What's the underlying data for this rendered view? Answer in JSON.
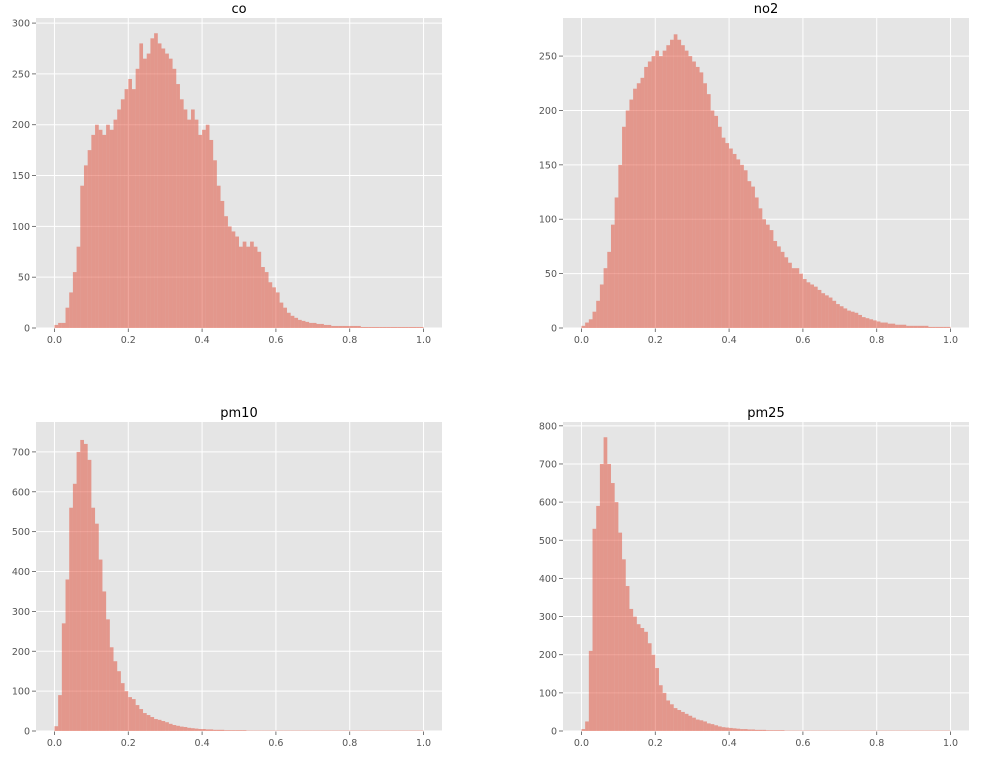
{
  "figure": {
    "background": "#ffffff",
    "axes_face": "#e5e5e5",
    "grid_color": "#ffffff",
    "bar_color": "#e24a33",
    "bar_opacity": 0.5
  },
  "chart_data": [
    {
      "type": "bar",
      "title": "co",
      "xlim": [
        -0.05,
        1.05
      ],
      "ylim": [
        0,
        305
      ],
      "xticks": [
        "0.0",
        "0.2",
        "0.4",
        "0.6",
        "0.8",
        "1.0"
      ],
      "yticks": [
        "0",
        "50",
        "100",
        "150",
        "200",
        "250",
        "300"
      ],
      "bin_width": 0.01,
      "bin_start": 0.0,
      "values": [
        3,
        5,
        5,
        20,
        35,
        55,
        80,
        140,
        160,
        175,
        190,
        200,
        195,
        190,
        200,
        195,
        205,
        215,
        225,
        235,
        245,
        235,
        255,
        280,
        265,
        270,
        285,
        290,
        280,
        275,
        270,
        265,
        255,
        240,
        225,
        215,
        205,
        215,
        205,
        190,
        195,
        200,
        185,
        165,
        140,
        125,
        110,
        100,
        95,
        90,
        80,
        85,
        80,
        85,
        80,
        75,
        60,
        55,
        45,
        40,
        35,
        25,
        20,
        15,
        12,
        10,
        8,
        7,
        6,
        5,
        5,
        4,
        4,
        3,
        3,
        2,
        2,
        2,
        2,
        2,
        2,
        2,
        2,
        1,
        1,
        1,
        1,
        1,
        1,
        1,
        1,
        1,
        1,
        1,
        1,
        1,
        1,
        1,
        1,
        1
      ]
    },
    {
      "type": "bar",
      "title": "no2",
      "xlim": [
        -0.05,
        1.05
      ],
      "ylim": [
        0,
        285
      ],
      "xticks": [
        "0.0",
        "0.2",
        "0.4",
        "0.6",
        "0.8",
        "1.0"
      ],
      "yticks": [
        "0",
        "50",
        "100",
        "150",
        "200",
        "250"
      ],
      "bin_width": 0.01,
      "bin_start": 0.0,
      "values": [
        2,
        5,
        8,
        15,
        25,
        40,
        55,
        70,
        95,
        120,
        150,
        185,
        200,
        210,
        220,
        225,
        230,
        240,
        245,
        250,
        255,
        250,
        255,
        260,
        265,
        270,
        265,
        260,
        255,
        250,
        245,
        240,
        235,
        225,
        215,
        200,
        195,
        185,
        175,
        170,
        165,
        160,
        155,
        150,
        145,
        135,
        130,
        120,
        110,
        100,
        95,
        90,
        80,
        75,
        70,
        65,
        60,
        55,
        55,
        50,
        45,
        42,
        40,
        38,
        35,
        32,
        30,
        28,
        25,
        22,
        20,
        18,
        16,
        15,
        14,
        12,
        10,
        9,
        8,
        7,
        6,
        5,
        5,
        4,
        4,
        3,
        3,
        3,
        2,
        2,
        2,
        2,
        2,
        2,
        1,
        1,
        1,
        1,
        1,
        1
      ]
    },
    {
      "type": "bar",
      "title": "pm10",
      "xlim": [
        -0.05,
        1.05
      ],
      "ylim": [
        0,
        775
      ],
      "xticks": [
        "0.0",
        "0.2",
        "0.4",
        "0.6",
        "0.8",
        "1.0"
      ],
      "yticks": [
        "0",
        "100",
        "200",
        "300",
        "400",
        "500",
        "600",
        "700"
      ],
      "bin_width": 0.01,
      "bin_start": 0.0,
      "values": [
        12,
        90,
        270,
        380,
        560,
        620,
        700,
        730,
        720,
        680,
        560,
        520,
        430,
        350,
        280,
        210,
        175,
        150,
        120,
        100,
        85,
        80,
        65,
        55,
        45,
        40,
        35,
        30,
        28,
        25,
        22,
        18,
        15,
        13,
        11,
        10,
        8,
        7,
        6,
        5,
        5,
        4,
        4,
        3,
        3,
        3,
        2,
        2,
        2,
        2,
        2,
        2,
        1,
        1,
        1,
        1,
        1,
        1,
        1,
        1,
        1,
        1,
        1,
        1,
        1,
        1,
        1,
        1,
        1,
        1,
        1,
        1,
        1,
        1,
        1,
        1,
        1,
        1,
        1,
        1,
        1,
        1,
        1,
        1,
        1,
        1,
        1,
        1,
        1,
        1,
        1,
        1,
        1,
        1,
        1,
        1,
        1,
        1,
        1,
        1
      ]
    },
    {
      "type": "bar",
      "title": "pm25",
      "xlim": [
        -0.05,
        1.05
      ],
      "ylim": [
        0,
        810
      ],
      "xticks": [
        "0.0",
        "0.2",
        "0.4",
        "0.6",
        "0.8",
        "1.0"
      ],
      "yticks": [
        "0",
        "100",
        "200",
        "300",
        "400",
        "500",
        "600",
        "700",
        "800"
      ],
      "bin_width": 0.01,
      "bin_start": 0.0,
      "values": [
        5,
        25,
        210,
        530,
        590,
        700,
        770,
        700,
        650,
        600,
        520,
        450,
        380,
        320,
        300,
        280,
        270,
        260,
        230,
        200,
        165,
        120,
        100,
        80,
        70,
        60,
        55,
        50,
        45,
        40,
        35,
        30,
        28,
        25,
        20,
        18,
        15,
        12,
        10,
        9,
        8,
        7,
        6,
        5,
        5,
        4,
        4,
        3,
        3,
        3,
        2,
        2,
        2,
        2,
        2,
        1,
        1,
        1,
        1,
        1,
        1,
        1,
        1,
        1,
        1,
        1,
        1,
        1,
        1,
        1,
        1,
        1,
        1,
        1,
        1,
        1,
        1,
        1,
        1,
        1,
        1,
        1,
        1,
        1,
        1,
        1,
        1,
        1,
        1,
        1,
        1,
        1,
        1,
        1,
        1,
        1,
        1,
        1,
        1,
        1
      ]
    }
  ]
}
